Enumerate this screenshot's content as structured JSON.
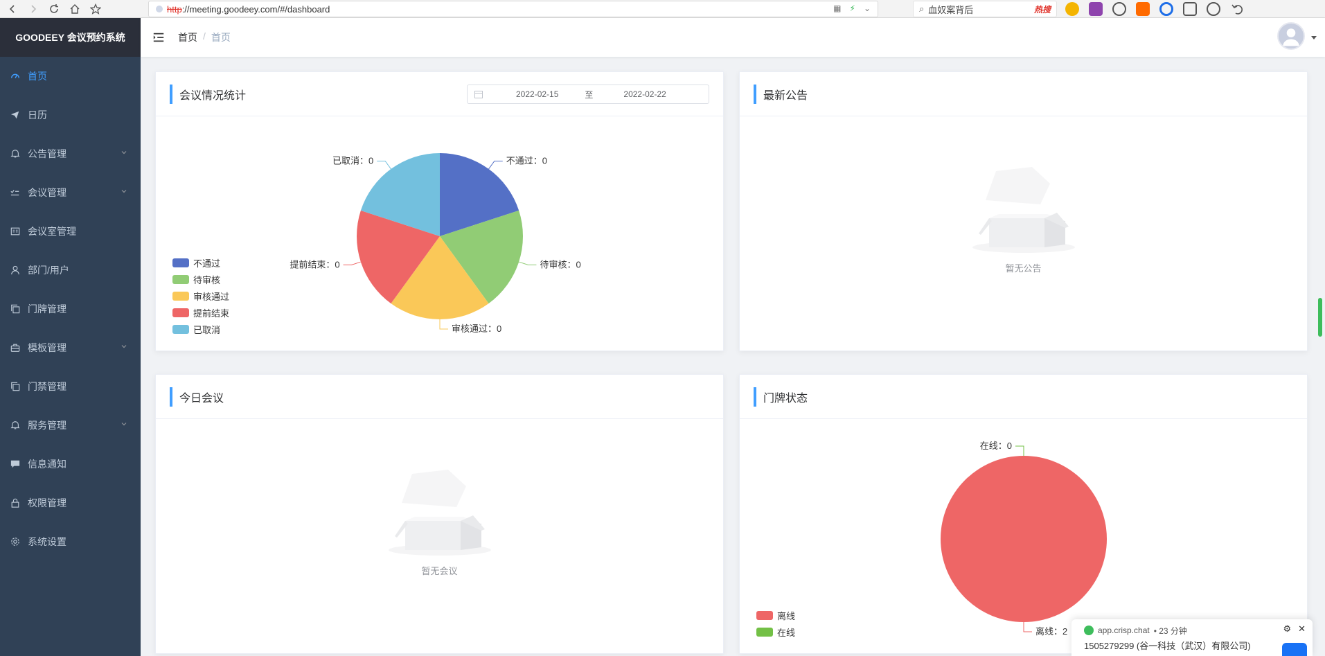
{
  "browser": {
    "url_protocol": "http",
    "url_rest": "://meeting.goodeey.com/#/dashboard",
    "search_text": "血奴案背后",
    "hot_label": "热搜"
  },
  "app": {
    "title": "GOODEEY 会议预约系统"
  },
  "sidebar": {
    "items": [
      {
        "label": "首页",
        "icon": "dashboard-icon",
        "active": true,
        "expandable": false
      },
      {
        "label": "日历",
        "icon": "paper-plane-icon",
        "active": false,
        "expandable": false
      },
      {
        "label": "公告管理",
        "icon": "bell-icon",
        "active": false,
        "expandable": true
      },
      {
        "label": "会议管理",
        "icon": "checklist-icon",
        "active": false,
        "expandable": true
      },
      {
        "label": "会议室管理",
        "icon": "room-icon",
        "active": false,
        "expandable": false
      },
      {
        "label": "部门/用户",
        "icon": "user-icon",
        "active": false,
        "expandable": false
      },
      {
        "label": "门牌管理",
        "icon": "copy-icon",
        "active": false,
        "expandable": false
      },
      {
        "label": "模板管理",
        "icon": "briefcase-icon",
        "active": false,
        "expandable": true
      },
      {
        "label": "门禁管理",
        "icon": "copy-icon",
        "active": false,
        "expandable": false
      },
      {
        "label": "服务管理",
        "icon": "bell-icon",
        "active": false,
        "expandable": true
      },
      {
        "label": "信息通知",
        "icon": "chat-icon",
        "active": false,
        "expandable": false
      },
      {
        "label": "权限管理",
        "icon": "lock-icon",
        "active": false,
        "expandable": false
      },
      {
        "label": "系统设置",
        "icon": "gear-icon",
        "active": false,
        "expandable": false
      }
    ]
  },
  "header": {
    "breadcrumb": [
      "首页",
      "首页"
    ],
    "breadcrumb_sep": "/"
  },
  "meeting_stats": {
    "title": "会议情况统计",
    "date_start": "2022-02-15",
    "date_to": "至",
    "date_end": "2022-02-22"
  },
  "announcements": {
    "title": "最新公告",
    "empty_text": "暂无公告"
  },
  "today_meetings": {
    "title": "今日会议",
    "empty_text": "暂无会议"
  },
  "doorplate_status": {
    "title": "门牌状态"
  },
  "chart_data": [
    {
      "type": "pie",
      "title": "会议情况统计",
      "legend_position": "bottom-left",
      "series": [
        {
          "name": "不通过",
          "value": 0,
          "color": "#5470c6",
          "label": "不通过：0"
        },
        {
          "name": "待审核",
          "value": 0,
          "color": "#91cc75",
          "label": "待审核：0"
        },
        {
          "name": "审核通过",
          "value": 0,
          "color": "#fac858",
          "label": "审核通过：0"
        },
        {
          "name": "提前结束",
          "value": 0,
          "color": "#ee6666",
          "label": "提前结束：0"
        },
        {
          "name": "已取消",
          "value": 0,
          "color": "#73c0de",
          "label": "已取消：0"
        }
      ]
    },
    {
      "type": "pie",
      "title": "门牌状态",
      "legend_position": "bottom-left",
      "series": [
        {
          "name": "离线",
          "value": 2,
          "color": "#ee6666",
          "label": "离线：2"
        },
        {
          "name": "在线",
          "value": 0,
          "color": "#73c046",
          "label": "在线：0"
        }
      ]
    }
  ],
  "crisp": {
    "source": "app.crisp.chat",
    "time": "• 23 分钟",
    "message": "1505279299 (谷一科技（武汉）有限公司)"
  }
}
